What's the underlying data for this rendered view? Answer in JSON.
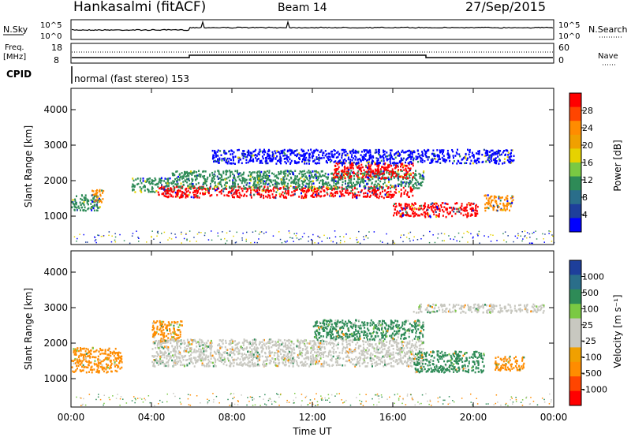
{
  "header": {
    "station": "Hankasalmi (fitACF)",
    "beam": "Beam 14",
    "date": "27/Sep/2015"
  },
  "noise_panel": {
    "left_label": "N.Sky",
    "right_label": "N.Search",
    "ticks_left": [
      "10^5",
      "10^0"
    ],
    "ticks_right": [
      "10^5",
      "10^0"
    ]
  },
  "freq_panel": {
    "left_label_line1": "Freq.",
    "left_label_line2": "[MHz]",
    "right_label": "Nave",
    "ticks_left": [
      "18",
      "8"
    ],
    "ticks_right": [
      "60",
      "0"
    ]
  },
  "cpid": {
    "label": "CPID",
    "mode_text": "normal (fast stereo) 153"
  },
  "colors": {
    "red": "#ff0000",
    "orange": "#ff8c00",
    "yellow": "#e6d200",
    "light_green": "#7ac943",
    "green": "#2e8b57",
    "blue_green": "#2a6e8a",
    "dark_blue": "#1e3f9b",
    "blue": "#0000ff",
    "grey": "#c8c8c0"
  },
  "chart_data": [
    {
      "type": "heatmap",
      "name": "power",
      "xlabel": "",
      "ylabel": "Slant Range [km]",
      "xlim": [
        0,
        24
      ],
      "ylim": [
        200,
        4600
      ],
      "yticks": [
        "1000",
        "2000",
        "3000",
        "4000"
      ],
      "colorbar_label": "Power [dB]",
      "colorbar_ticks": [
        "28",
        "24",
        "20",
        "16",
        "12",
        "8",
        "4"
      ],
      "scatter_bands": [
        {
          "t0": 0.0,
          "t1": 1.5,
          "center_km": 1400,
          "width_km": 220,
          "level": "green"
        },
        {
          "t0": 1.0,
          "t1": 1.6,
          "center_km": 1600,
          "width_km": 180,
          "level": "orange"
        },
        {
          "t0": 3.0,
          "t1": 5.0,
          "center_km": 1900,
          "width_km": 200,
          "level": "green"
        },
        {
          "t0": 4.3,
          "t1": 17.0,
          "center_km": 1700,
          "width_km": 160,
          "level": "red"
        },
        {
          "t0": 5.0,
          "t1": 17.5,
          "center_km": 2050,
          "width_km": 260,
          "level": "green"
        },
        {
          "t0": 13.0,
          "t1": 17.0,
          "center_km": 2300,
          "width_km": 220,
          "level": "red"
        },
        {
          "t0": 16.0,
          "t1": 20.2,
          "center_km": 1200,
          "width_km": 200,
          "level": "red"
        },
        {
          "t0": 20.5,
          "t1": 22.0,
          "center_km": 1400,
          "width_km": 220,
          "level": "orange"
        },
        {
          "t0": 7.0,
          "t1": 22.0,
          "center_km": 2700,
          "width_km": 200,
          "level": "blue"
        }
      ]
    },
    {
      "type": "heatmap",
      "name": "velocity",
      "xlabel": "Time UT",
      "ylabel": "Slant Range [km]",
      "xlim": [
        0,
        24
      ],
      "ylim": [
        200,
        4600
      ],
      "xticks": [
        "00:00",
        "04:00",
        "08:00",
        "12:00",
        "16:00",
        "20:00",
        "00:00"
      ],
      "yticks": [
        "1000",
        "2000",
        "3000",
        "4000"
      ],
      "colorbar_label": "Velocity [m s⁻¹]",
      "colorbar_ticks": [
        "1000",
        "500",
        "100",
        "25",
        "-25",
        "-100",
        "-500",
        "-1000"
      ],
      "scatter_bands": [
        {
          "t0": 0.0,
          "t1": 2.5,
          "center_km": 1550,
          "width_km": 350,
          "level": "orange"
        },
        {
          "t0": 4.0,
          "t1": 5.5,
          "center_km": 2350,
          "width_km": 300,
          "level": "orange"
        },
        {
          "t0": 4.0,
          "t1": 17.5,
          "center_km": 1750,
          "width_km": 380,
          "level": "grey"
        },
        {
          "t0": 12.0,
          "t1": 17.5,
          "center_km": 2400,
          "width_km": 280,
          "level": "green"
        },
        {
          "t0": 17.0,
          "t1": 20.5,
          "center_km": 1500,
          "width_km": 300,
          "level": "green"
        },
        {
          "t0": 21.0,
          "t1": 22.5,
          "center_km": 1450,
          "width_km": 200,
          "level": "orange"
        },
        {
          "t0": 17.0,
          "t1": 23.5,
          "center_km": 3000,
          "width_km": 120,
          "level": "grey"
        }
      ]
    }
  ]
}
